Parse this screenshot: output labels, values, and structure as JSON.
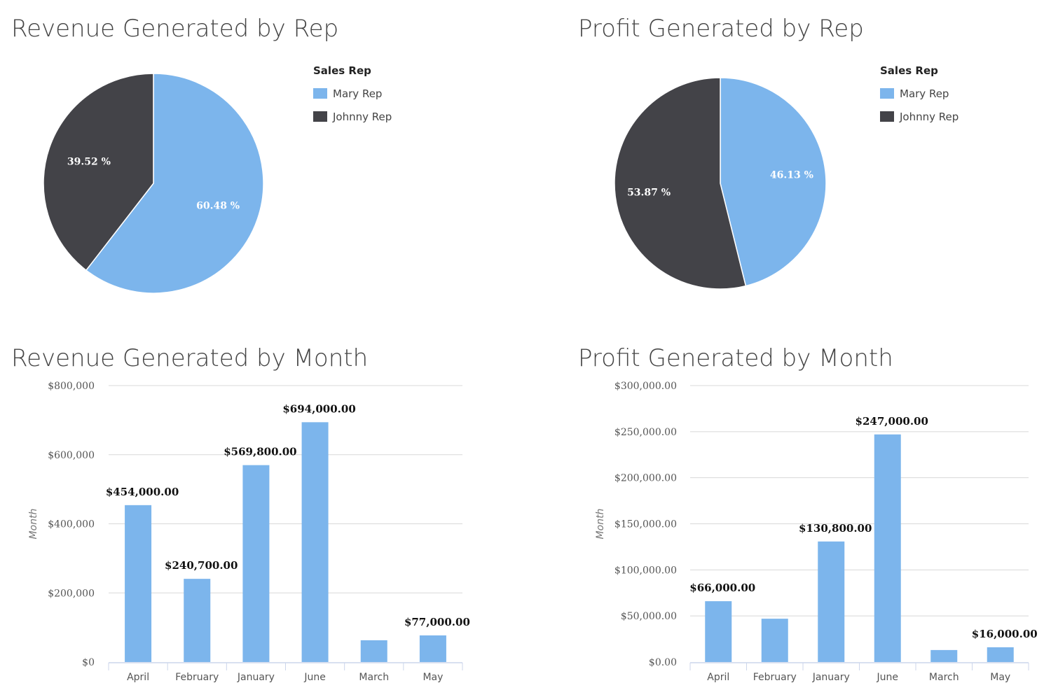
{
  "colors": {
    "mary": "#7cb5ec",
    "johnny": "#434348",
    "grid": "#d8d8d8",
    "axis": "#ccd6eb"
  },
  "chart_data": [
    {
      "type": "pie",
      "title": "Revenue Generated by Rep",
      "legend_title": "Sales Rep",
      "legend_placement": "top-right",
      "slices": [
        {
          "name": "Mary Rep",
          "value": 60.48,
          "label": "60.48 %",
          "color": "#7cb5ec"
        },
        {
          "name": "Johnny Rep",
          "value": 39.52,
          "label": "39.52 %",
          "color": "#434348"
        }
      ]
    },
    {
      "type": "pie",
      "title": "Profit Generated by Rep",
      "legend_title": "Sales Rep",
      "legend_placement": "top-right",
      "slices": [
        {
          "name": "Mary Rep",
          "value": 46.13,
          "label": "46.13 %",
          "color": "#7cb5ec"
        },
        {
          "name": "Johnny Rep",
          "value": 53.87,
          "label": "53.87 %",
          "color": "#434348"
        }
      ]
    },
    {
      "type": "bar",
      "title": "Revenue Generated by Month",
      "ylabel": "Month",
      "ylim": [
        0,
        800000
      ],
      "yticks": [
        0,
        200000,
        400000,
        600000,
        800000
      ],
      "ytick_labels": [
        "$0",
        "$200,000",
        "$400,000",
        "$600,000",
        "$800,000"
      ],
      "grid": true,
      "categories": [
        "April",
        "February",
        "January",
        "June",
        "March",
        "May"
      ],
      "values": [
        454000,
        240700,
        569800,
        694000,
        63000,
        77000
      ],
      "data_labels": [
        "$454,000.00",
        "$240,700.00",
        "$569,800.00",
        "$694,000.00",
        "",
        "$77,000.00"
      ],
      "color": "#7cb5ec"
    },
    {
      "type": "bar",
      "title": "Profit Generated by Month",
      "ylabel": "Month",
      "ylim": [
        0,
        300000
      ],
      "yticks": [
        0,
        50000,
        100000,
        150000,
        200000,
        250000,
        300000
      ],
      "ytick_labels": [
        "$0.00",
        "$50,000.00",
        "$100,000.00",
        "$150,000.00",
        "$200,000.00",
        "$250,000.00",
        "$300,000.00"
      ],
      "grid": true,
      "categories": [
        "April",
        "February",
        "January",
        "June",
        "March",
        "May"
      ],
      "values": [
        66000,
        47000,
        130800,
        247000,
        13000,
        16000
      ],
      "data_labels": [
        "$66,000.00",
        "",
        "$130,800.00",
        "$247,000.00",
        "",
        "$16,000.00"
      ],
      "color": "#7cb5ec"
    }
  ]
}
